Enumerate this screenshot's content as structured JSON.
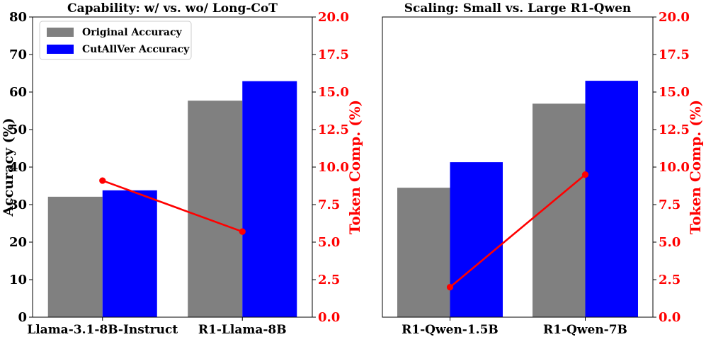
{
  "colors": {
    "original": "#808080",
    "cutallver": "#0000ff",
    "token_line": "#ff0000",
    "axis": "#000000"
  },
  "legend": {
    "original_label": "Original Accuracy",
    "cutallver_label": "CutAllVer Accuracy"
  },
  "chart_data": [
    {
      "type": "bar",
      "title": "Capability: w/ vs. wo/ Long-CoT",
      "categories": [
        "Llama-3.1-8B-Instruct",
        "R1-Llama-8B"
      ],
      "series": [
        {
          "name": "Original Accuracy",
          "values": [
            32.1,
            57.7
          ]
        },
        {
          "name": "CutAllVer Accuracy",
          "values": [
            33.8,
            62.9
          ]
        }
      ],
      "line_series": {
        "name": "Token Comp. (%)",
        "values": [
          9.1,
          5.7
        ]
      },
      "ylabel": "Accuracy (%)",
      "ylim": [
        0,
        80
      ],
      "yticks": [
        "0",
        "10",
        "20",
        "30",
        "40",
        "50",
        "60",
        "70",
        "80"
      ],
      "y2label": "Token Comp. (%)",
      "y2lim": [
        0,
        20
      ],
      "y2ticks": [
        "0.0",
        "2.5",
        "5.0",
        "7.5",
        "10.0",
        "12.5",
        "15.0",
        "17.5",
        "20.0"
      ]
    },
    {
      "type": "bar",
      "title": "Scaling: Small vs. Large R1-Qwen",
      "categories": [
        "R1-Qwen-1.5B",
        "R1-Qwen-7B"
      ],
      "series": [
        {
          "name": "Original Accuracy",
          "values": [
            34.5,
            56.9
          ]
        },
        {
          "name": "CutAllVer Accuracy",
          "values": [
            41.3,
            63.0
          ]
        }
      ],
      "line_series": {
        "name": "Token Comp. (%)",
        "values": [
          2.0,
          9.5
        ]
      },
      "ylabel": "",
      "ylim": [
        0,
        80
      ],
      "yticks": [],
      "y2label": "Token Comp. (%)",
      "y2lim": [
        0,
        20
      ],
      "y2ticks": [
        "0.0",
        "2.5",
        "5.0",
        "7.5",
        "10.0",
        "12.5",
        "15.0",
        "17.5",
        "20.0"
      ]
    }
  ]
}
